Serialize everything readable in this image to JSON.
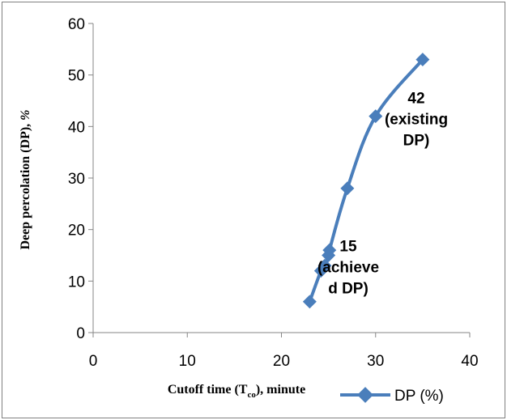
{
  "chart_data": {
    "type": "line",
    "title": "",
    "xlabel": "Cutoff time (Tco), minute",
    "xlabel_main": "Cutoff time (T",
    "xlabel_sub": "co",
    "xlabel_tail": "), minute",
    "ylabel": "Deep percolation (DP), %",
    "ylabel_main": "Deep percolation (DP), ",
    "ylabel_unit": "%",
    "xlim": [
      0,
      40
    ],
    "ylim": [
      0,
      60
    ],
    "x_ticks": [
      0,
      10,
      20,
      30,
      40
    ],
    "y_ticks": [
      0,
      10,
      20,
      30,
      40,
      50,
      60
    ],
    "x_tick_labels": [
      "0",
      "10",
      "20",
      "30",
      "40"
    ],
    "y_tick_labels": [
      "0",
      "10",
      "20",
      "30",
      "40",
      "50",
      "60"
    ],
    "grid": false,
    "legend_position": "bottom-right",
    "series": [
      {
        "name": "DP (%)",
        "color": "#4a7ebb",
        "marker": "diamond",
        "x": [
          23,
          24.2,
          24.6,
          25,
          25.1,
          27,
          30,
          35
        ],
        "y": [
          6,
          12,
          13,
          15,
          16,
          28,
          42,
          53
        ]
      }
    ],
    "annotations": [
      {
        "lines": [
          "42",
          "(existing",
          "DP)"
        ],
        "x": 30,
        "y": 42
      },
      {
        "lines": [
          "15",
          "(achieve",
          "d DP)"
        ],
        "x": 25,
        "y": 15
      }
    ]
  }
}
